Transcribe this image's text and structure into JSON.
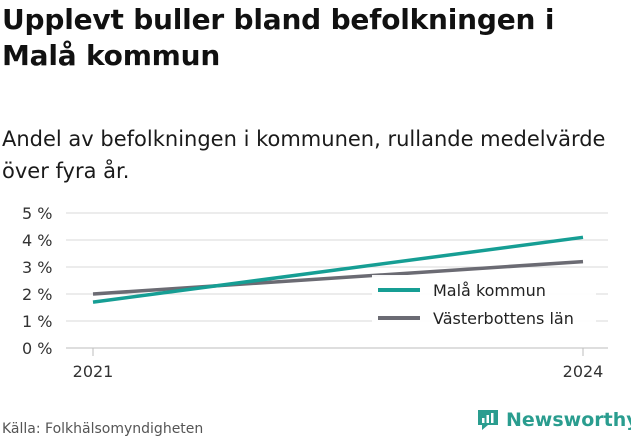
{
  "title": "Upplevt buller bland befolkningen i Malå kommun",
  "subtitle": "Andel av befolkningen i kommunen, rullande medelvärde över fyra år.",
  "source": "Källa: Folkhälsomyndigheten",
  "brand": "Newsworthy",
  "colors": {
    "primary": "#169e94",
    "secondary": "#6b6b73",
    "grid": "#d9d9d9",
    "brand": "#2a9d8f"
  },
  "chart_data": {
    "type": "line",
    "x": [
      "2021",
      "2024"
    ],
    "y_ticks": [
      "0 %",
      "1 %",
      "2 %",
      "3 %",
      "4 %",
      "5 %"
    ],
    "ylim": [
      0,
      5
    ],
    "x_ticks": [
      "2021",
      "2024"
    ],
    "series": [
      {
        "name": "Malå kommun",
        "values": [
          1.7,
          4.1
        ],
        "color": "#169e94"
      },
      {
        "name": "Västerbottens län",
        "values": [
          2.0,
          3.2
        ],
        "color": "#6b6b73"
      }
    ],
    "legend_position": "bottom-right",
    "grid": true
  }
}
